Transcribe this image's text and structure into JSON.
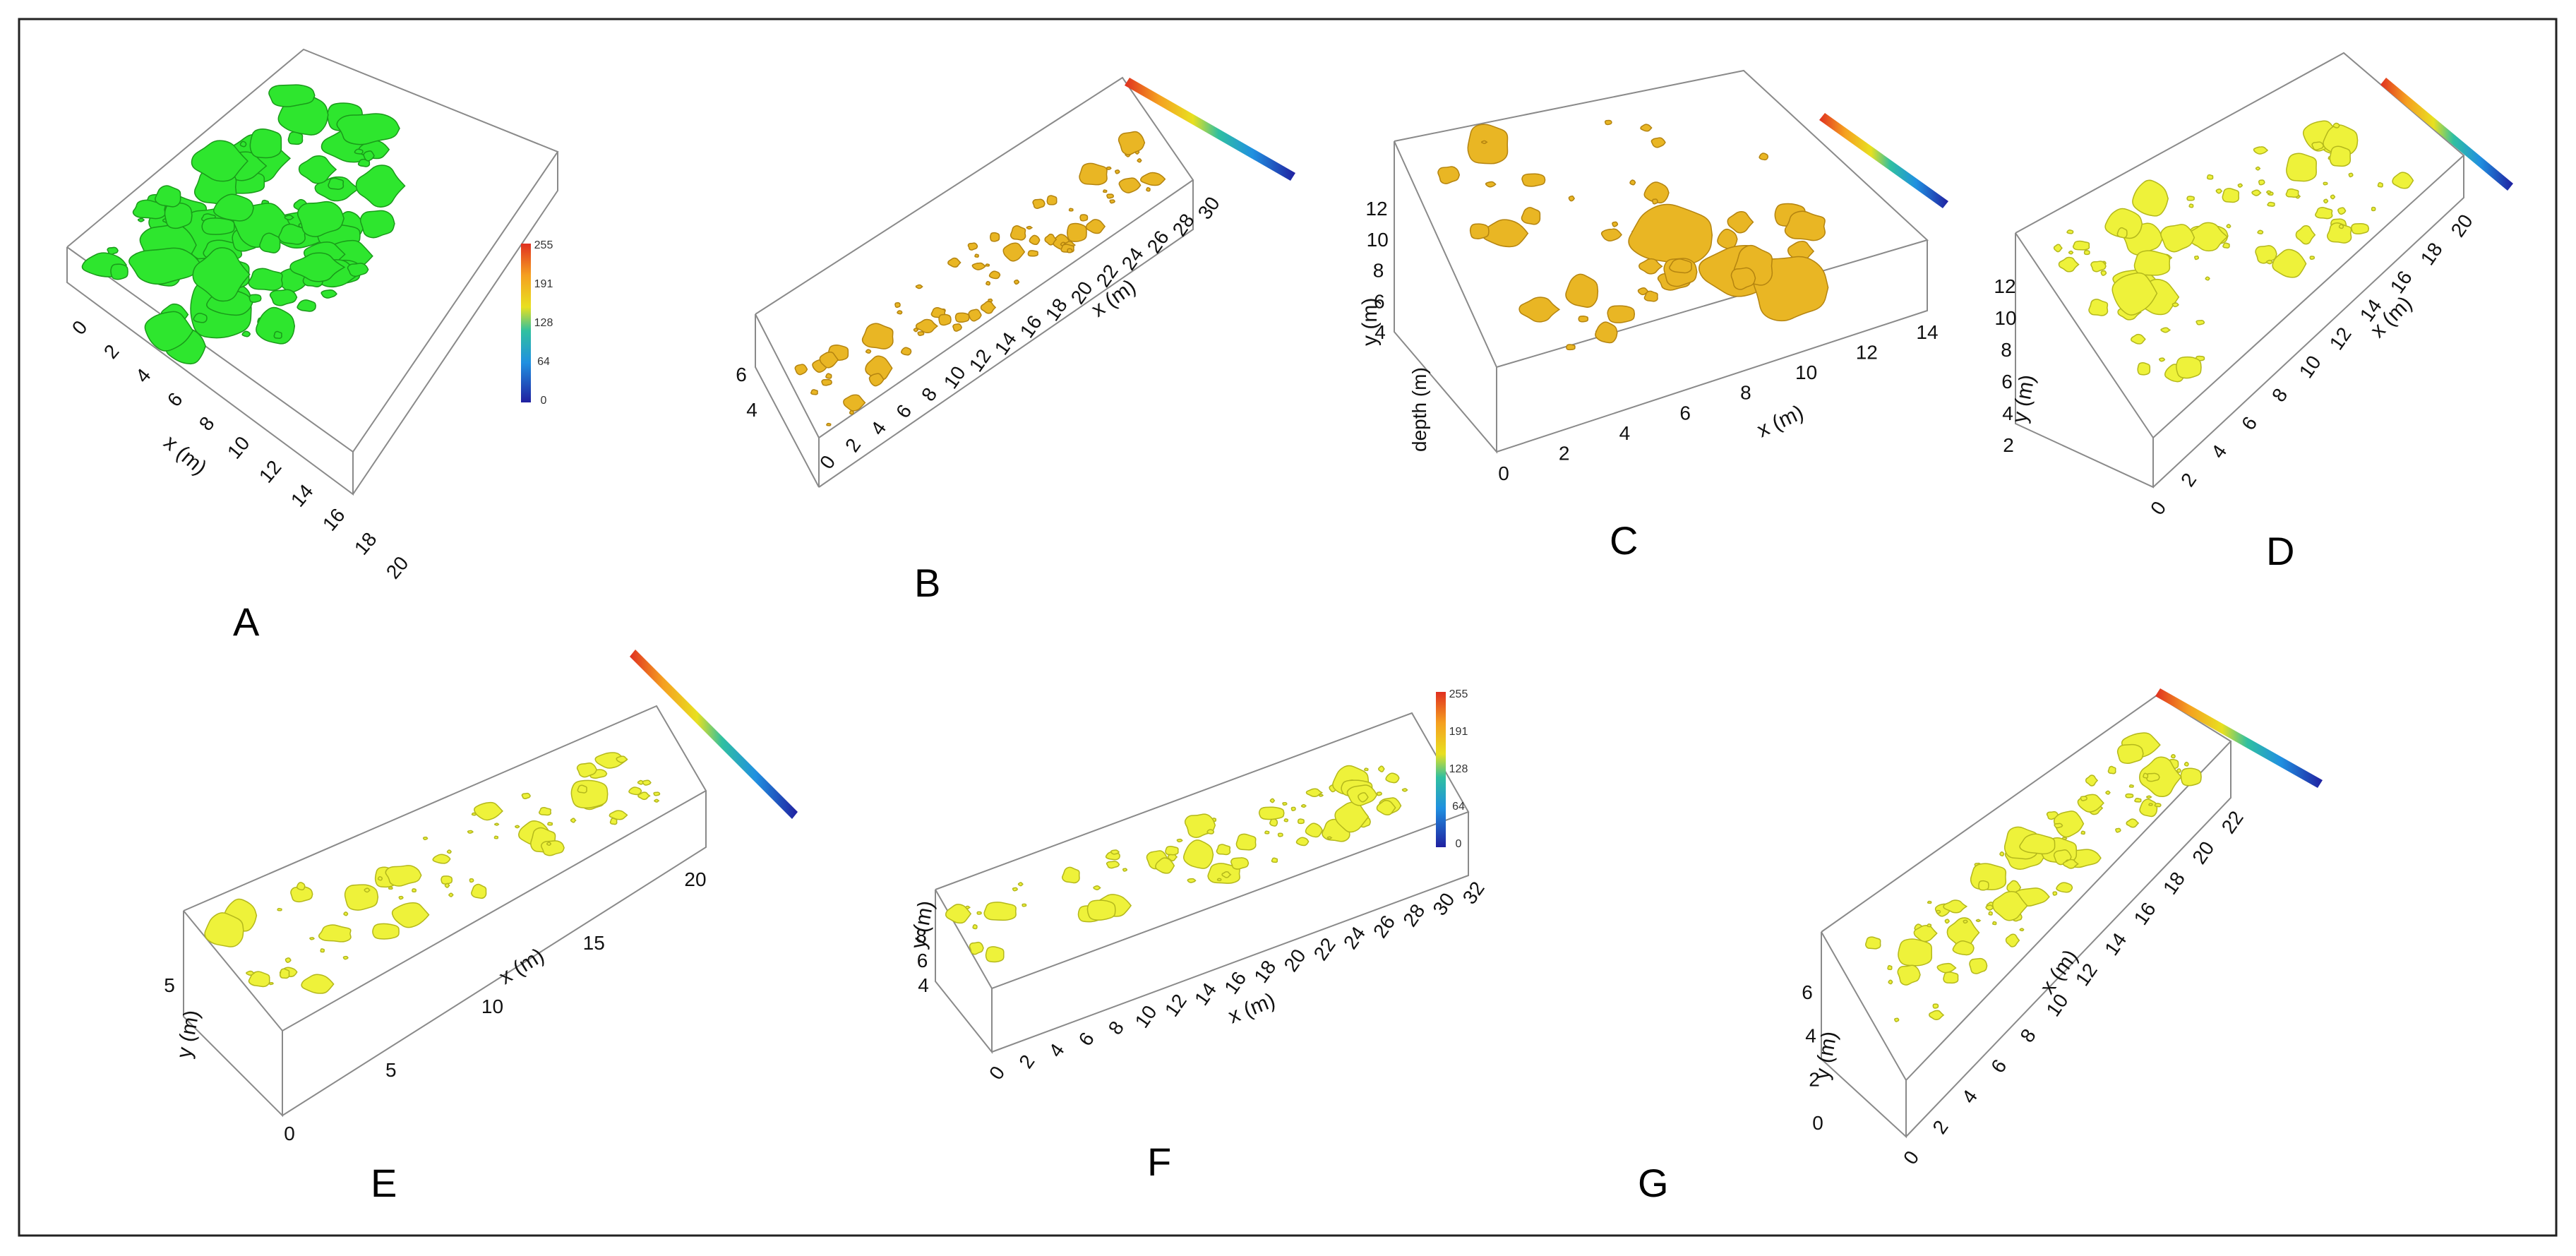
{
  "colorbar": {
    "ticks": [
      "255",
      "191",
      "128",
      "64",
      "0"
    ]
  },
  "blob_colors": {
    "green": "#2ee62e",
    "gold": "#e9b624",
    "yellow": "#eef23a"
  },
  "panels": [
    {
      "id": "A",
      "label": "A",
      "xlabel": "x (m)",
      "xticks": [
        "0",
        "2",
        "4",
        "6",
        "8",
        "10",
        "12",
        "14",
        "16",
        "18",
        "20"
      ]
    },
    {
      "id": "B",
      "label": "B",
      "xlabel": "x (m)",
      "xticks": [
        "0",
        "2",
        "4",
        "6",
        "8",
        "10",
        "12",
        "14",
        "16",
        "18",
        "20",
        "22",
        "24",
        "26",
        "28",
        "30"
      ],
      "yticks": [
        "6",
        "4"
      ]
    },
    {
      "id": "C",
      "label": "C",
      "xlabel": "x (m)",
      "ylabel": "y (m)",
      "zlabel": "depth (m)",
      "xticks": [
        "0",
        "2",
        "4",
        "6",
        "8",
        "10",
        "12",
        "14"
      ],
      "yticks": [
        "12",
        "10",
        "8",
        "6",
        "4"
      ]
    },
    {
      "id": "D",
      "label": "D",
      "xlabel": "x (m)",
      "ylabel": "y (m)",
      "xticks": [
        "0",
        "2",
        "4",
        "6",
        "8",
        "10",
        "12",
        "14",
        "16",
        "18",
        "20"
      ],
      "yticks": [
        "12",
        "10",
        "8",
        "6",
        "4",
        "2"
      ]
    },
    {
      "id": "E",
      "label": "E",
      "xlabel": "x (m)",
      "ylabel": "y (m)",
      "xticks": [
        "0",
        "5",
        "10",
        "15",
        "20"
      ],
      "yticks": [
        "5"
      ]
    },
    {
      "id": "F",
      "label": "F",
      "xlabel": "x (m)",
      "ylabel": "y (m)",
      "xticks": [
        "0",
        "2",
        "4",
        "6",
        "8",
        "10",
        "12",
        "14",
        "16",
        "18",
        "20",
        "22",
        "24",
        "26",
        "28",
        "30",
        "32"
      ],
      "yticks": [
        "8",
        "6",
        "4"
      ]
    },
    {
      "id": "G",
      "label": "G",
      "xlabel": "x (m)",
      "ylabel": "y (m)",
      "xticks": [
        "0",
        "2",
        "4",
        "6",
        "8",
        "10",
        "12",
        "14",
        "16",
        "18",
        "20",
        "22"
      ],
      "yticks": [
        "6",
        "4",
        "2",
        "0"
      ]
    }
  ]
}
